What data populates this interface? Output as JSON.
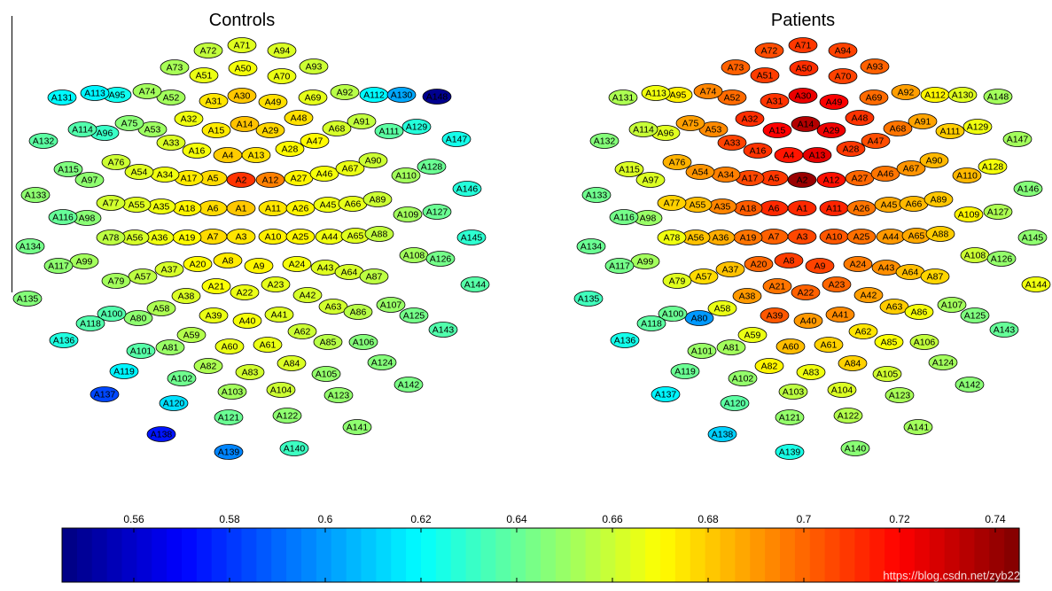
{
  "chart_data": {
    "type": "heatmap",
    "description_labels": {
      "panel_titles": [
        "Controls",
        "Patients"
      ]
    },
    "colormap": "jet",
    "colorbar": {
      "range": [
        0.545,
        0.745
      ],
      "ticks": [
        0.56,
        0.58,
        0.6,
        0.62,
        0.64,
        0.66,
        0.68,
        0.7,
        0.72,
        0.74
      ],
      "tick_labels": [
        "0.56",
        "0.58",
        "0.6",
        "0.62",
        "0.64",
        "0.66",
        "0.68",
        "0.7",
        "0.72",
        "0.74"
      ]
    },
    "panels": [
      {
        "title": "Controls",
        "values": {
          "A1": 0.681,
          "A2": 0.71,
          "A3": 0.675,
          "A4": 0.68,
          "A5": 0.677,
          "A6": 0.677,
          "A7": 0.677,
          "A8": 0.674,
          "A9": 0.672,
          "A10": 0.673,
          "A11": 0.675,
          "A12": 0.695,
          "A13": 0.676,
          "A14": 0.682,
          "A15": 0.674,
          "A16": 0.668,
          "A17": 0.674,
          "A18": 0.672,
          "A19": 0.671,
          "A20": 0.671,
          "A21": 0.669,
          "A22": 0.666,
          "A23": 0.665,
          "A24": 0.668,
          "A25": 0.672,
          "A26": 0.672,
          "A27": 0.672,
          "A28": 0.671,
          "A29": 0.678,
          "A30": 0.681,
          "A31": 0.675,
          "A32": 0.667,
          "A33": 0.663,
          "A34": 0.667,
          "A35": 0.667,
          "A36": 0.667,
          "A37": 0.662,
          "A38": 0.663,
          "A39": 0.666,
          "A40": 0.668,
          "A41": 0.664,
          "A42": 0.662,
          "A43": 0.664,
          "A44": 0.667,
          "A45": 0.667,
          "A46": 0.668,
          "A47": 0.671,
          "A48": 0.676,
          "A49": 0.676,
          "A50": 0.668,
          "A51": 0.666,
          "A52": 0.652,
          "A53": 0.651,
          "A54": 0.664,
          "A55": 0.664,
          "A56": 0.662,
          "A57": 0.657,
          "A58": 0.654,
          "A59": 0.655,
          "A60": 0.666,
          "A61": 0.666,
          "A62": 0.66,
          "A63": 0.661,
          "A64": 0.662,
          "A65": 0.664,
          "A66": 0.665,
          "A67": 0.666,
          "A68": 0.662,
          "A69": 0.665,
          "A70": 0.666,
          "A71": 0.664,
          "A72": 0.658,
          "A73": 0.653,
          "A74": 0.652,
          "A75": 0.647,
          "A76": 0.66,
          "A77": 0.661,
          "A78": 0.657,
          "A79": 0.652,
          "A80": 0.648,
          "A81": 0.65,
          "A82": 0.654,
          "A83": 0.661,
          "A84": 0.663,
          "A85": 0.656,
          "A86": 0.656,
          "A87": 0.657,
          "A88": 0.658,
          "A89": 0.66,
          "A90": 0.66,
          "A91": 0.658,
          "A92": 0.656,
          "A93": 0.66,
          "A94": 0.663,
          "A95": 0.623,
          "A96": 0.631,
          "A97": 0.648,
          "A98": 0.647,
          "A99": 0.652,
          "A100": 0.636,
          "A101": 0.637,
          "A102": 0.642,
          "A103": 0.652,
          "A104": 0.66,
          "A105": 0.649,
          "A106": 0.646,
          "A107": 0.65,
          "A108": 0.652,
          "A109": 0.652,
          "A110": 0.652,
          "A111": 0.638,
          "A112": 0.619,
          "A113": 0.618,
          "A114": 0.636,
          "A115": 0.645,
          "A116": 0.64,
          "A117": 0.648,
          "A118": 0.636,
          "A119": 0.618,
          "A120": 0.614,
          "A121": 0.641,
          "A122": 0.648,
          "A123": 0.649,
          "A124": 0.646,
          "A125": 0.643,
          "A126": 0.643,
          "A127": 0.641,
          "A128": 0.641,
          "A129": 0.627,
          "A130": 0.603,
          "A131": 0.619,
          "A132": 0.638,
          "A133": 0.648,
          "A134": 0.643,
          "A135": 0.646,
          "A136": 0.626,
          "A137": 0.584,
          "A138": 0.574,
          "A139": 0.596,
          "A140": 0.632,
          "A141": 0.648,
          "A142": 0.644,
          "A143": 0.636,
          "A144": 0.637,
          "A145": 0.629,
          "A146": 0.627,
          "A147": 0.624,
          "A148": 0.548
        }
      },
      {
        "title": "Patients",
        "values": {
          "A1": 0.712,
          "A2": 0.74,
          "A3": 0.706,
          "A4": 0.716,
          "A5": 0.709,
          "A6": 0.712,
          "A7": 0.701,
          "A8": 0.708,
          "A9": 0.707,
          "A10": 0.703,
          "A11": 0.713,
          "A12": 0.717,
          "A13": 0.725,
          "A14": 0.735,
          "A15": 0.72,
          "A16": 0.71,
          "A17": 0.706,
          "A18": 0.702,
          "A19": 0.697,
          "A20": 0.7,
          "A21": 0.697,
          "A22": 0.701,
          "A23": 0.7,
          "A24": 0.696,
          "A25": 0.698,
          "A26": 0.697,
          "A27": 0.7,
          "A28": 0.709,
          "A29": 0.723,
          "A30": 0.724,
          "A31": 0.71,
          "A32": 0.711,
          "A33": 0.707,
          "A34": 0.695,
          "A35": 0.694,
          "A36": 0.686,
          "A37": 0.682,
          "A38": 0.69,
          "A39": 0.703,
          "A40": 0.69,
          "A41": 0.693,
          "A42": 0.689,
          "A43": 0.692,
          "A44": 0.69,
          "A45": 0.687,
          "A46": 0.697,
          "A47": 0.705,
          "A48": 0.71,
          "A49": 0.721,
          "A50": 0.711,
          "A51": 0.708,
          "A52": 0.699,
          "A53": 0.693,
          "A54": 0.691,
          "A55": 0.683,
          "A56": 0.682,
          "A57": 0.677,
          "A58": 0.666,
          "A59": 0.666,
          "A60": 0.683,
          "A61": 0.679,
          "A62": 0.675,
          "A63": 0.68,
          "A64": 0.683,
          "A65": 0.687,
          "A66": 0.684,
          "A67": 0.691,
          "A68": 0.697,
          "A69": 0.699,
          "A70": 0.707,
          "A71": 0.709,
          "A72": 0.705,
          "A73": 0.701,
          "A74": 0.694,
          "A75": 0.689,
          "A76": 0.685,
          "A77": 0.679,
          "A78": 0.667,
          "A79": 0.664,
          "A80": 0.6,
          "A81": 0.652,
          "A82": 0.672,
          "A83": 0.667,
          "A84": 0.679,
          "A85": 0.669,
          "A86": 0.668,
          "A87": 0.678,
          "A88": 0.68,
          "A89": 0.681,
          "A90": 0.684,
          "A91": 0.688,
          "A92": 0.689,
          "A93": 0.701,
          "A94": 0.707,
          "A95": 0.673,
          "A96": 0.664,
          "A97": 0.663,
          "A98": 0.65,
          "A99": 0.652,
          "A100": 0.641,
          "A101": 0.65,
          "A102": 0.649,
          "A103": 0.657,
          "A104": 0.663,
          "A105": 0.661,
          "A106": 0.658,
          "A107": 0.652,
          "A108": 0.66,
          "A109": 0.672,
          "A110": 0.684,
          "A111": 0.68,
          "A112": 0.672,
          "A113": 0.667,
          "A114": 0.659,
          "A115": 0.663,
          "A116": 0.643,
          "A117": 0.643,
          "A118": 0.638,
          "A119": 0.641,
          "A120": 0.638,
          "A121": 0.649,
          "A122": 0.655,
          "A123": 0.653,
          "A124": 0.652,
          "A125": 0.645,
          "A126": 0.649,
          "A127": 0.654,
          "A128": 0.668,
          "A129": 0.667,
          "A130": 0.664,
          "A131": 0.654,
          "A132": 0.646,
          "A133": 0.642,
          "A134": 0.641,
          "A135": 0.633,
          "A136": 0.624,
          "A137": 0.618,
          "A138": 0.611,
          "A139": 0.625,
          "A140": 0.647,
          "A141": 0.652,
          "A142": 0.647,
          "A143": 0.64,
          "A144": 0.667,
          "A145": 0.648,
          "A146": 0.646,
          "A147": 0.652,
          "A148": 0.652
        }
      }
    ]
  },
  "watermark": "https://blog.csdn.net/zyb228107"
}
